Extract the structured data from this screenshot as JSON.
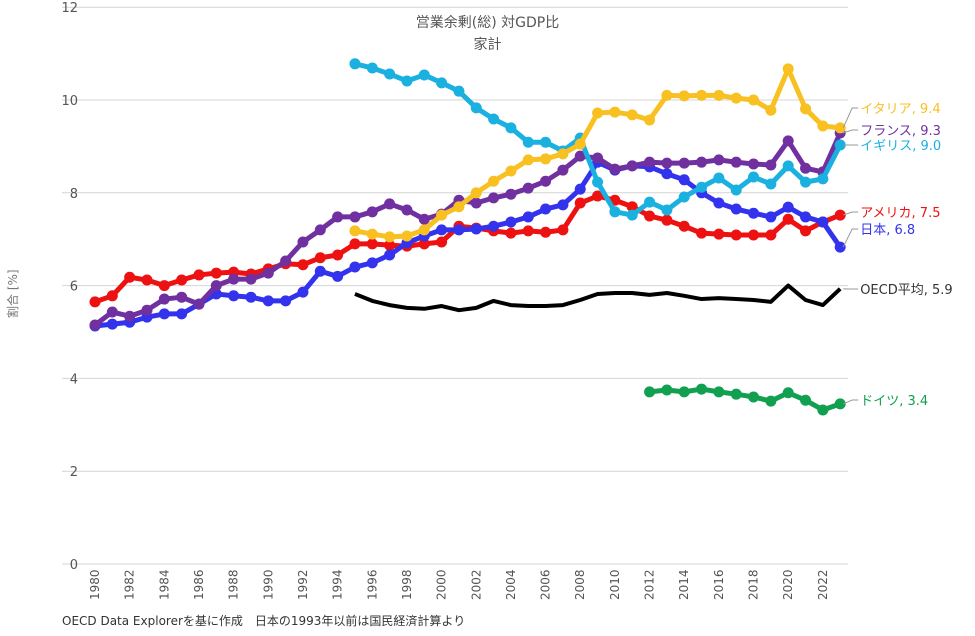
{
  "chart_data": {
    "type": "line",
    "title": "営業余剰(総) 対GDP比",
    "subtitle": "家計",
    "xlabel": "",
    "ylabel": "割合 [%]",
    "ylim": [
      0,
      12
    ],
    "xlim": [
      1980,
      2023
    ],
    "yticks": [
      0,
      2,
      4,
      6,
      8,
      10,
      12
    ],
    "xticks": [
      1980,
      1982,
      1984,
      1986,
      1988,
      1990,
      1992,
      1994,
      1996,
      1998,
      2000,
      2002,
      2004,
      2006,
      2008,
      2010,
      2012,
      2014,
      2016,
      2018,
      2020,
      2022
    ],
    "grid": true,
    "source": "OECD Data Explorerを基に作成　日本の1993年以前は国民経済計算より",
    "series": [
      {
        "name": "アメリカ",
        "label": "アメリカ, 7.5",
        "color": "#ee1111",
        "markers": true,
        "start": 1980,
        "values": [
          5.65,
          5.78,
          6.18,
          6.12,
          6.0,
          6.12,
          6.23,
          6.27,
          6.29,
          6.25,
          6.36,
          6.47,
          6.45,
          6.6,
          6.66,
          6.9,
          6.9,
          6.87,
          6.85,
          6.9,
          6.94,
          7.28,
          7.24,
          7.18,
          7.13,
          7.18,
          7.15,
          7.2,
          7.78,
          7.93,
          7.84,
          7.7,
          7.5,
          7.41,
          7.28,
          7.13,
          7.11,
          7.09,
          7.09,
          7.09,
          7.43,
          7.18,
          7.37,
          7.52
        ]
      },
      {
        "name": "日本",
        "label": "日本, 6.8",
        "color": "#3333ee",
        "markers": true,
        "start": 1980,
        "values": [
          5.13,
          5.17,
          5.21,
          5.32,
          5.39,
          5.39,
          5.6,
          5.82,
          5.78,
          5.75,
          5.67,
          5.67,
          5.86,
          6.31,
          6.2,
          6.4,
          6.49,
          6.66,
          6.92,
          7.07,
          7.2,
          7.2,
          7.22,
          7.28,
          7.37,
          7.48,
          7.65,
          7.74,
          8.08,
          8.66,
          8.49,
          8.58,
          8.56,
          8.41,
          8.28,
          8.0,
          7.78,
          7.65,
          7.56,
          7.48,
          7.69,
          7.48,
          7.37,
          6.83
        ]
      },
      {
        "name": "フランス",
        "label": "フランス, 9.3",
        "color": "#7030a0",
        "markers": true,
        "start": 1980,
        "values": [
          5.15,
          5.43,
          5.34,
          5.47,
          5.71,
          5.75,
          5.6,
          6.0,
          6.14,
          6.14,
          6.27,
          6.53,
          6.94,
          7.2,
          7.48,
          7.48,
          7.59,
          7.76,
          7.63,
          7.43,
          7.54,
          7.84,
          7.78,
          7.89,
          7.97,
          8.1,
          8.25,
          8.49,
          8.79,
          8.75,
          8.51,
          8.58,
          8.66,
          8.64,
          8.64,
          8.66,
          8.71,
          8.66,
          8.62,
          8.6,
          9.12,
          8.53,
          8.45,
          9.29
        ]
      },
      {
        "name": "イギリス",
        "label": "イギリス, 9.0",
        "color": "#1ab0e0",
        "markers": true,
        "start": 1995,
        "values": [
          10.78,
          10.69,
          10.56,
          10.41,
          10.54,
          10.37,
          10.19,
          9.83,
          9.59,
          9.4,
          9.09,
          9.09,
          8.9,
          9.18,
          8.23,
          7.59,
          7.52,
          7.8,
          7.63,
          7.91,
          8.12,
          8.32,
          8.06,
          8.34,
          8.19,
          8.58,
          8.23,
          8.3,
          9.03
        ]
      },
      {
        "name": "イタリア",
        "label": "イタリア, 9.4",
        "color": "#f8c020",
        "markers": true,
        "start": 1995,
        "values": [
          7.18,
          7.11,
          7.05,
          7.07,
          7.2,
          7.52,
          7.7,
          8.0,
          8.25,
          8.47,
          8.71,
          8.73,
          8.84,
          9.05,
          9.72,
          9.74,
          9.68,
          9.57,
          10.1,
          10.09,
          10.1,
          10.1,
          10.04,
          10.0,
          9.78,
          10.67,
          9.81,
          9.44,
          9.4
        ]
      },
      {
        "name": "OECD平均",
        "label": "OECD平均, 5.9",
        "color": "#000000",
        "markers": false,
        "start": 1995,
        "values": [
          5.82,
          5.67,
          5.58,
          5.52,
          5.5,
          5.56,
          5.47,
          5.52,
          5.67,
          5.58,
          5.56,
          5.56,
          5.58,
          5.69,
          5.82,
          5.84,
          5.84,
          5.8,
          5.84,
          5.78,
          5.71,
          5.73,
          5.71,
          5.69,
          5.65,
          6.0,
          5.69,
          5.58,
          5.93
        ]
      },
      {
        "name": "ドイツ",
        "label": "ドイツ, 3.4",
        "color": "#10a050",
        "markers": true,
        "start": 2012,
        "values": [
          3.71,
          3.75,
          3.71,
          3.77,
          3.71,
          3.66,
          3.6,
          3.51,
          3.69,
          3.53,
          3.32,
          3.45
        ]
      }
    ]
  }
}
